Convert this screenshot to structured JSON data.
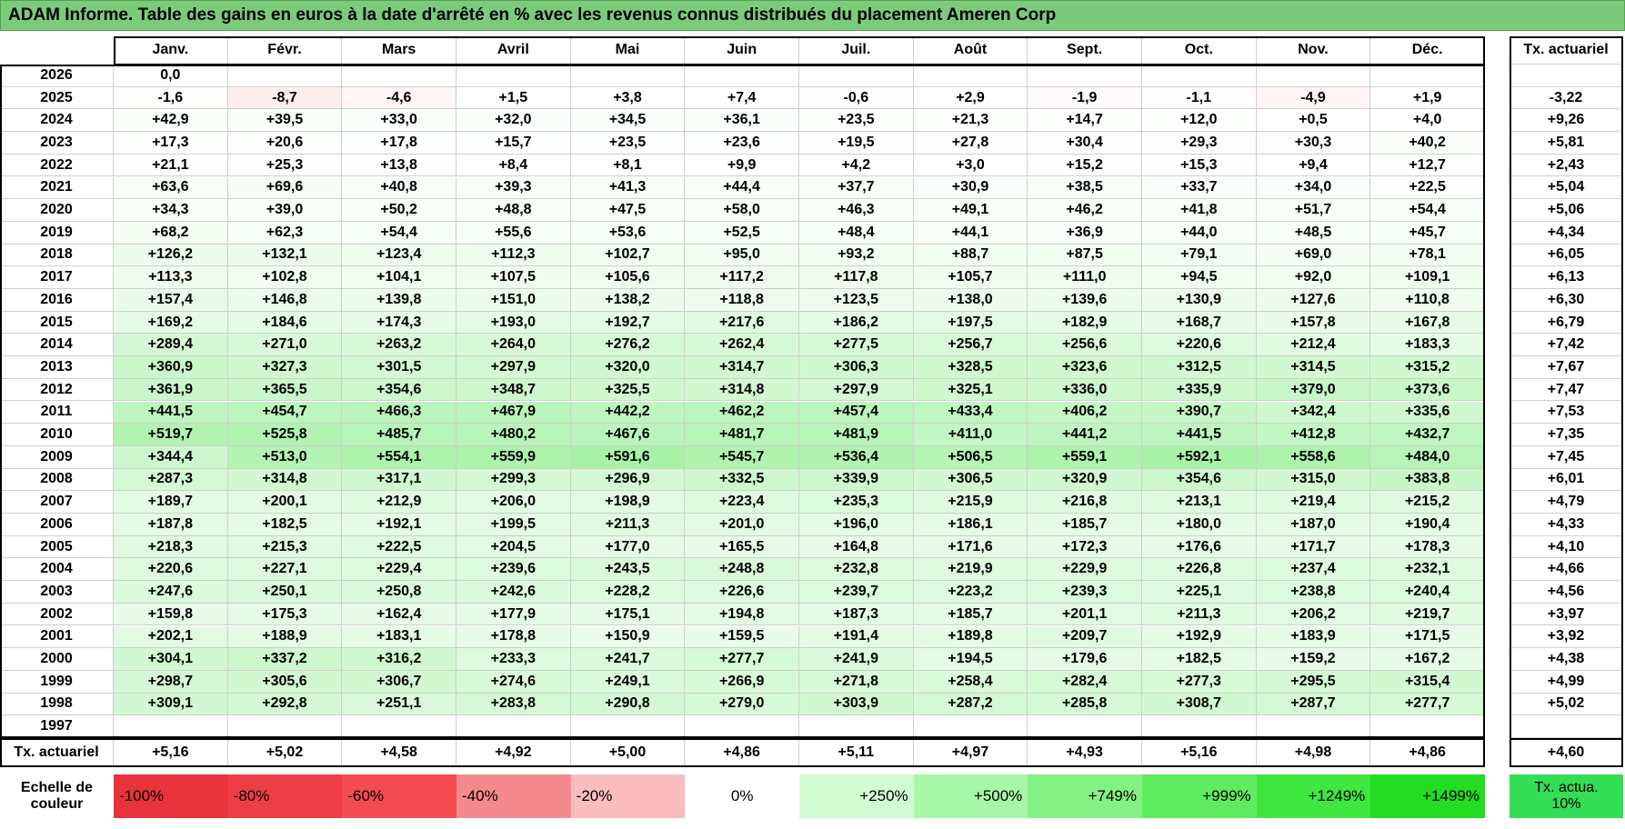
{
  "title": "ADAM Informe. Table des gains en euros à la date d'arrêté en % avec les revenus connus distribués du placement Ameren Corp",
  "table": {
    "columns": [
      "Janv.",
      "Févr.",
      "Mars",
      "Avril",
      "Mai",
      "Juin",
      "Juil.",
      "Août",
      "Sept.",
      "Oct.",
      "Nov.",
      "Déc."
    ],
    "tx_header": "Tx. actuariel",
    "rows": [
      {
        "year": "2026",
        "values": [
          "0,0",
          null,
          null,
          null,
          null,
          null,
          null,
          null,
          null,
          null,
          null,
          null
        ],
        "tx": null
      },
      {
        "year": "2025",
        "values": [
          "-1,6",
          "-8,7",
          "-4,6",
          "+1,5",
          "+3,8",
          "+7,4",
          "-0,6",
          "+2,9",
          "-1,9",
          "-1,1",
          "-4,9",
          "+1,9"
        ],
        "tx": "-3,22"
      },
      {
        "year": "2024",
        "values": [
          "+42,9",
          "+39,5",
          "+33,0",
          "+32,0",
          "+34,5",
          "+36,1",
          "+23,5",
          "+21,3",
          "+14,7",
          "+12,0",
          "+0,5",
          "+4,0"
        ],
        "tx": "+9,26"
      },
      {
        "year": "2023",
        "values": [
          "+17,3",
          "+20,6",
          "+17,8",
          "+15,7",
          "+23,5",
          "+23,6",
          "+19,5",
          "+27,8",
          "+30,4",
          "+29,3",
          "+30,3",
          "+40,2"
        ],
        "tx": "+5,81"
      },
      {
        "year": "2022",
        "values": [
          "+21,1",
          "+25,3",
          "+13,8",
          "+8,4",
          "+8,1",
          "+9,9",
          "+4,2",
          "+3,0",
          "+15,2",
          "+15,3",
          "+9,4",
          "+12,7"
        ],
        "tx": "+2,43"
      },
      {
        "year": "2021",
        "values": [
          "+63,6",
          "+69,6",
          "+40,8",
          "+39,3",
          "+41,3",
          "+44,4",
          "+37,7",
          "+30,9",
          "+38,5",
          "+33,7",
          "+34,0",
          "+22,5"
        ],
        "tx": "+5,04"
      },
      {
        "year": "2020",
        "values": [
          "+34,3",
          "+39,0",
          "+50,2",
          "+48,8",
          "+47,5",
          "+58,0",
          "+46,3",
          "+49,1",
          "+46,2",
          "+41,8",
          "+51,7",
          "+54,4"
        ],
        "tx": "+5,06"
      },
      {
        "year": "2019",
        "values": [
          "+68,2",
          "+62,3",
          "+54,4",
          "+55,6",
          "+53,6",
          "+52,5",
          "+48,4",
          "+44,1",
          "+36,9",
          "+44,0",
          "+48,5",
          "+45,7"
        ],
        "tx": "+4,34"
      },
      {
        "year": "2018",
        "values": [
          "+126,2",
          "+132,1",
          "+123,4",
          "+112,3",
          "+102,7",
          "+95,0",
          "+93,2",
          "+88,7",
          "+87,5",
          "+79,1",
          "+69,0",
          "+78,1"
        ],
        "tx": "+6,05"
      },
      {
        "year": "2017",
        "values": [
          "+113,3",
          "+102,8",
          "+104,1",
          "+107,5",
          "+105,6",
          "+117,2",
          "+117,8",
          "+105,7",
          "+111,0",
          "+94,5",
          "+92,0",
          "+109,1"
        ],
        "tx": "+6,13"
      },
      {
        "year": "2016",
        "values": [
          "+157,4",
          "+146,8",
          "+139,8",
          "+151,0",
          "+138,2",
          "+118,8",
          "+123,5",
          "+138,0",
          "+139,6",
          "+130,9",
          "+127,6",
          "+110,8"
        ],
        "tx": "+6,30"
      },
      {
        "year": "2015",
        "values": [
          "+169,2",
          "+184,6",
          "+174,3",
          "+193,0",
          "+192,7",
          "+217,6",
          "+186,2",
          "+197,5",
          "+182,9",
          "+168,7",
          "+157,8",
          "+167,8"
        ],
        "tx": "+6,79"
      },
      {
        "year": "2014",
        "values": [
          "+289,4",
          "+271,0",
          "+263,2",
          "+264,0",
          "+276,2",
          "+262,4",
          "+277,5",
          "+256,7",
          "+256,6",
          "+220,6",
          "+212,4",
          "+183,3"
        ],
        "tx": "+7,42"
      },
      {
        "year": "2013",
        "values": [
          "+360,9",
          "+327,3",
          "+301,5",
          "+297,9",
          "+320,0",
          "+314,7",
          "+306,3",
          "+328,5",
          "+323,6",
          "+312,5",
          "+314,5",
          "+315,2"
        ],
        "tx": "+7,67"
      },
      {
        "year": "2012",
        "values": [
          "+361,9",
          "+365,5",
          "+354,6",
          "+348,7",
          "+325,5",
          "+314,8",
          "+297,9",
          "+325,1",
          "+336,0",
          "+335,9",
          "+379,0",
          "+373,6"
        ],
        "tx": "+7,47"
      },
      {
        "year": "2011",
        "values": [
          "+441,5",
          "+454,7",
          "+466,3",
          "+467,9",
          "+442,2",
          "+462,2",
          "+457,4",
          "+433,4",
          "+406,2",
          "+390,7",
          "+342,4",
          "+335,6"
        ],
        "tx": "+7,53"
      },
      {
        "year": "2010",
        "values": [
          "+519,7",
          "+525,8",
          "+485,7",
          "+480,2",
          "+467,6",
          "+481,7",
          "+481,9",
          "+411,0",
          "+441,2",
          "+441,5",
          "+412,8",
          "+432,7"
        ],
        "tx": "+7,35"
      },
      {
        "year": "2009",
        "values": [
          "+344,4",
          "+513,0",
          "+554,1",
          "+559,9",
          "+591,6",
          "+545,7",
          "+536,4",
          "+506,5",
          "+559,1",
          "+592,1",
          "+558,6",
          "+484,0"
        ],
        "tx": "+7,45"
      },
      {
        "year": "2008",
        "values": [
          "+287,3",
          "+314,8",
          "+317,1",
          "+299,3",
          "+296,9",
          "+332,5",
          "+339,9",
          "+306,5",
          "+320,9",
          "+354,6",
          "+315,0",
          "+383,8"
        ],
        "tx": "+6,01"
      },
      {
        "year": "2007",
        "values": [
          "+189,7",
          "+200,1",
          "+212,9",
          "+206,0",
          "+198,9",
          "+223,4",
          "+235,3",
          "+215,9",
          "+216,8",
          "+213,1",
          "+219,4",
          "+215,2"
        ],
        "tx": "+4,79"
      },
      {
        "year": "2006",
        "values": [
          "+187,8",
          "+182,5",
          "+192,1",
          "+199,5",
          "+211,3",
          "+201,0",
          "+196,0",
          "+186,1",
          "+185,7",
          "+180,0",
          "+187,0",
          "+190,4"
        ],
        "tx": "+4,33"
      },
      {
        "year": "2005",
        "values": [
          "+218,3",
          "+215,3",
          "+222,5",
          "+204,5",
          "+177,0",
          "+165,5",
          "+164,8",
          "+171,6",
          "+172,3",
          "+176,6",
          "+171,7",
          "+178,3"
        ],
        "tx": "+4,10"
      },
      {
        "year": "2004",
        "values": [
          "+220,6",
          "+227,1",
          "+229,4",
          "+239,6",
          "+243,5",
          "+248,8",
          "+232,8",
          "+219,9",
          "+229,9",
          "+226,8",
          "+237,4",
          "+232,1"
        ],
        "tx": "+4,66"
      },
      {
        "year": "2003",
        "values": [
          "+247,6",
          "+250,1",
          "+250,8",
          "+242,6",
          "+228,2",
          "+226,6",
          "+239,7",
          "+223,2",
          "+239,3",
          "+225,1",
          "+238,8",
          "+240,4"
        ],
        "tx": "+4,56"
      },
      {
        "year": "2002",
        "values": [
          "+159,8",
          "+175,3",
          "+162,4",
          "+177,9",
          "+175,1",
          "+194,8",
          "+187,3",
          "+185,7",
          "+201,1",
          "+211,3",
          "+206,2",
          "+219,7"
        ],
        "tx": "+3,97"
      },
      {
        "year": "2001",
        "values": [
          "+202,1",
          "+188,9",
          "+183,1",
          "+178,8",
          "+150,9",
          "+159,5",
          "+191,4",
          "+189,8",
          "+209,7",
          "+192,9",
          "+183,9",
          "+171,5"
        ],
        "tx": "+3,92"
      },
      {
        "year": "2000",
        "values": [
          "+304,1",
          "+337,2",
          "+316,2",
          "+233,3",
          "+241,7",
          "+277,7",
          "+241,9",
          "+194,5",
          "+179,6",
          "+182,5",
          "+159,2",
          "+167,2"
        ],
        "tx": "+4,38"
      },
      {
        "year": "1999",
        "values": [
          "+298,7",
          "+305,6",
          "+306,7",
          "+274,6",
          "+249,1",
          "+266,9",
          "+271,8",
          "+258,4",
          "+282,4",
          "+277,3",
          "+295,5",
          "+315,4"
        ],
        "tx": "+4,99"
      },
      {
        "year": "1998",
        "values": [
          "+309,1",
          "+292,8",
          "+251,1",
          "+283,8",
          "+290,8",
          "+279,0",
          "+303,9",
          "+287,2",
          "+285,8",
          "+308,7",
          "+287,7",
          "+277,7"
        ],
        "tx": "+5,02"
      },
      {
        "year": "1997",
        "values": [
          null,
          null,
          null,
          null,
          null,
          null,
          null,
          null,
          null,
          null,
          null,
          null
        ],
        "tx": null
      }
    ],
    "footer": {
      "label": "Tx. actuariel",
      "values": [
        "+5,16",
        "+5,02",
        "+4,58",
        "+4,92",
        "+5,00",
        "+4,86",
        "+5,11",
        "+4,97",
        "+4,93",
        "+5,16",
        "+4,98",
        "+4,86"
      ],
      "tx": "+4,60"
    }
  },
  "legend": {
    "label": "Echelle de couleur",
    "items": [
      "-100%",
      "-80%",
      "-60%",
      "-40%",
      "-20%",
      "0%",
      "+250%",
      "+500%",
      "+749%",
      "+999%",
      "+1249%",
      "+1499%"
    ],
    "tx": "Tx. actua. 10%"
  }
}
